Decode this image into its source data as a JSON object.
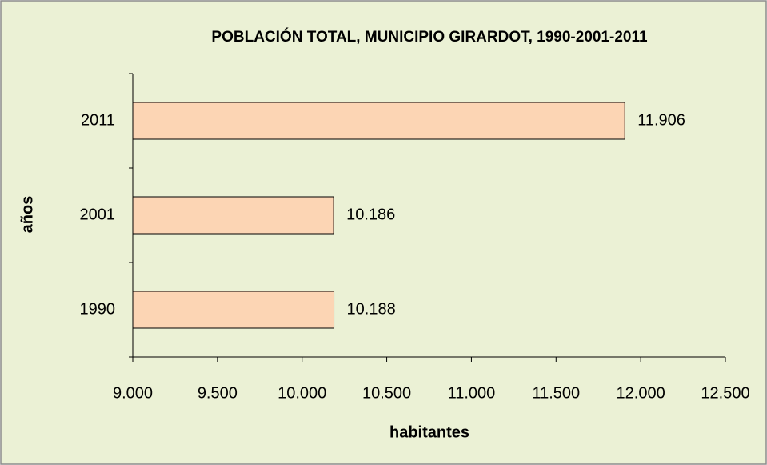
{
  "chart_data": {
    "type": "barh",
    "title": "POBLACIÓN TOTAL, MUNICIPIO GIRARDOT, 1990-2001-2011",
    "categories": [
      "1990",
      "2001",
      "2011"
    ],
    "values": [
      10188,
      10186,
      11906
    ],
    "value_labels": [
      "10.188",
      "10.186",
      "11.906"
    ],
    "color": "#fcd5b4",
    "xlabel": "habitantes",
    "ylabel": "años",
    "xlim": [
      9000,
      12500
    ],
    "xticks": [
      {
        "value": 9000,
        "label": "9.000"
      },
      {
        "value": 9500,
        "label": "9.500"
      },
      {
        "value": 10000,
        "label": "10.000"
      },
      {
        "value": 10500,
        "label": "10.500"
      },
      {
        "value": 11000,
        "label": "11.000"
      },
      {
        "value": 11500,
        "label": "11.500"
      },
      {
        "value": 12000,
        "label": "12.000"
      },
      {
        "value": 12500,
        "label": "12.500"
      }
    ],
    "grid": false
  }
}
